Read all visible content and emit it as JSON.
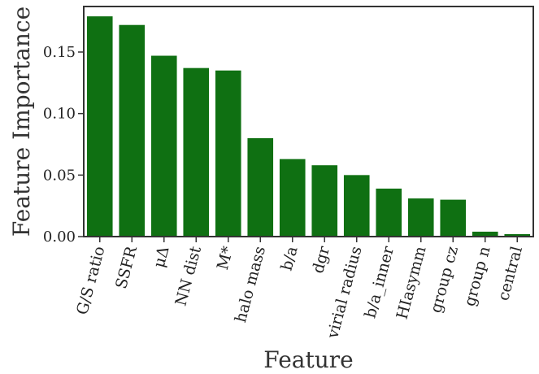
{
  "chart_data": {
    "type": "bar",
    "categories": [
      "G/S ratio",
      "SSFR",
      "μΔ",
      "NN dist",
      "M*",
      "halo mass",
      "b/a",
      "dgr",
      "virial radius",
      "b/a_inner",
      "HIasymm",
      "group cz",
      "group n",
      "central"
    ],
    "values": [
      0.179,
      0.172,
      0.147,
      0.137,
      0.135,
      0.08,
      0.063,
      0.058,
      0.05,
      0.039,
      0.031,
      0.03,
      0.004,
      0.002
    ],
    "xlabel": "Feature",
    "ylabel": "Feature Importance",
    "ylim": [
      0,
      0.187
    ],
    "yticks": [
      "0.00",
      "0.05",
      "0.10",
      "0.15"
    ],
    "grid": false,
    "colors": {
      "bar": "#0f7012",
      "axis": "#333333"
    }
  }
}
